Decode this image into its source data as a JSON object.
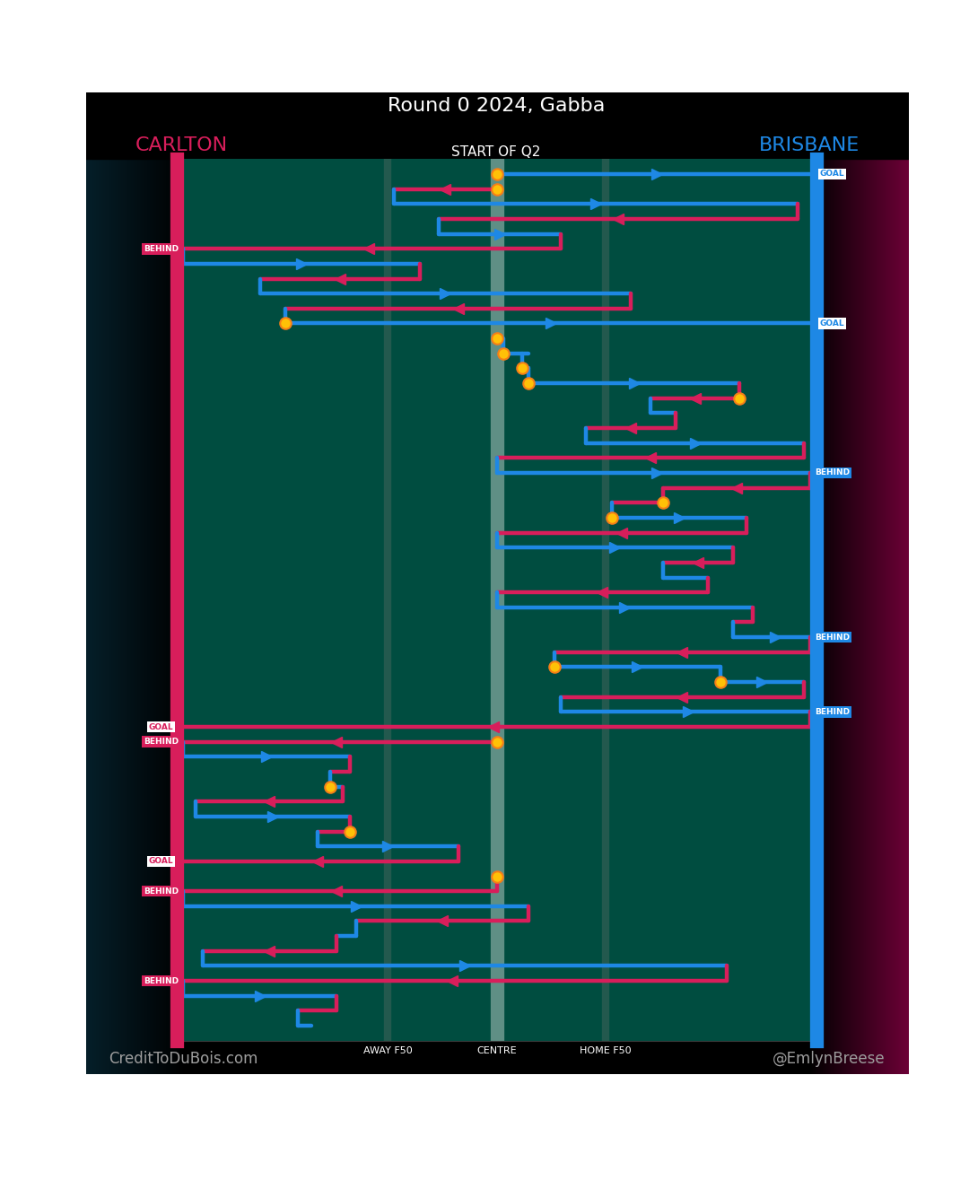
{
  "chart_data": {
    "type": "flow",
    "title": "Round 0 2024, Gabba",
    "subtitle": "START OF Q2",
    "credits": [
      "CreditToDuBois.com",
      "@EmlynBreese"
    ],
    "series": [
      {
        "name": "CARLTON",
        "color": "#d81e5b"
      },
      {
        "name": "BRISBANE",
        "color": "#1e88e5"
      }
    ],
    "results": [
      "GOAL",
      "BEHIND"
    ],
    "xlim": [
      0,
      100
    ],
    "xticks": [
      {
        "value": 33,
        "label": "AWAY F50"
      },
      {
        "value": 50,
        "label": "CENTRE"
      },
      {
        "value": 67,
        "label": "HOME F50"
      }
    ],
    "tick_labels": "x",
    "chains": [
      {
        "team": "BRISBANE",
        "start": 50,
        "end": 100,
        "result": "GOAL",
        "stoppage": true
      },
      {
        "team": "CARLTON",
        "start": 50,
        "end": 34,
        "result": null,
        "stoppage": true
      },
      {
        "team": "BRISBANE",
        "start": 34,
        "end": 97,
        "result": null,
        "stoppage": false
      },
      {
        "team": "CARLTON",
        "start": 97,
        "end": 41,
        "result": null,
        "stoppage": false
      },
      {
        "team": "BRISBANE",
        "start": 41,
        "end": 60,
        "result": null,
        "stoppage": false
      },
      {
        "team": "CARLTON",
        "start": 60,
        "end": 0,
        "result": "BEHIND",
        "stoppage": false
      },
      {
        "team": "BRISBANE",
        "start": 1,
        "end": 38,
        "result": null,
        "stoppage": false
      },
      {
        "team": "CARLTON",
        "start": 38,
        "end": 13,
        "result": null,
        "stoppage": false
      },
      {
        "team": "BRISBANE",
        "start": 13,
        "end": 71,
        "result": null,
        "stoppage": false
      },
      {
        "team": "CARLTON",
        "start": 71,
        "end": 17,
        "result": null,
        "stoppage": false
      },
      {
        "team": "BRISBANE",
        "start": 17,
        "end": 100,
        "result": "GOAL",
        "stoppage": true
      },
      {
        "team": "CARLTON",
        "start": 50,
        "end": 50,
        "result": null,
        "stoppage": true
      },
      {
        "team": "BRISBANE",
        "start": 51,
        "end": 55,
        "result": null,
        "stoppage": true
      },
      {
        "team": "BRISBANE",
        "start": 54,
        "end": 55,
        "result": null,
        "stoppage": true
      },
      {
        "team": "BRISBANE",
        "start": 55,
        "end": 88,
        "result": null,
        "stoppage": true
      },
      {
        "team": "CARLTON",
        "start": 88,
        "end": 74,
        "result": null,
        "stoppage": true
      },
      {
        "team": "BRISBANE",
        "start": 74,
        "end": 78,
        "result": null,
        "stoppage": false
      },
      {
        "team": "CARLTON",
        "start": 78,
        "end": 64,
        "result": null,
        "stoppage": false
      },
      {
        "team": "BRISBANE",
        "start": 64,
        "end": 98,
        "result": null,
        "stoppage": false
      },
      {
        "team": "CARLTON",
        "start": 98,
        "end": 50,
        "result": null,
        "stoppage": false
      },
      {
        "team": "BRISBANE",
        "start": 50,
        "end": 100,
        "result": "BEHIND",
        "stoppage": false
      },
      {
        "team": "CARLTON",
        "start": 99,
        "end": 76,
        "result": null,
        "stoppage": false
      },
      {
        "team": "CARLTON",
        "start": 76,
        "end": 68,
        "result": null,
        "stoppage": true
      },
      {
        "team": "BRISBANE",
        "start": 68,
        "end": 89,
        "result": null,
        "stoppage": true
      },
      {
        "team": "CARLTON",
        "start": 89,
        "end": 50,
        "result": null,
        "stoppage": false
      },
      {
        "team": "BRISBANE",
        "start": 50,
        "end": 87,
        "result": null,
        "stoppage": false
      },
      {
        "team": "CARLTON",
        "start": 87,
        "end": 76,
        "result": null,
        "stoppage": false
      },
      {
        "team": "BRISBANE",
        "start": 76,
        "end": 83,
        "result": null,
        "stoppage": false
      },
      {
        "team": "CARLTON",
        "start": 83,
        "end": 50,
        "result": null,
        "stoppage": false
      },
      {
        "team": "BRISBANE",
        "start": 50,
        "end": 90,
        "result": null,
        "stoppage": false
      },
      {
        "team": "CARLTON",
        "start": 90,
        "end": 87,
        "result": null,
        "stoppage": false
      },
      {
        "team": "BRISBANE",
        "start": 87,
        "end": 100,
        "result": "BEHIND",
        "stoppage": false
      },
      {
        "team": "CARLTON",
        "start": 99,
        "end": 59,
        "result": null,
        "stoppage": false
      },
      {
        "team": "BRISBANE",
        "start": 59,
        "end": 85,
        "result": null,
        "stoppage": true
      },
      {
        "team": "BRISBANE",
        "start": 85,
        "end": 98,
        "result": null,
        "stoppage": true
      },
      {
        "team": "CARLTON",
        "start": 98,
        "end": 60,
        "result": null,
        "stoppage": false
      },
      {
        "team": "BRISBANE",
        "start": 60,
        "end": 100,
        "result": "BEHIND",
        "stoppage": false
      },
      {
        "team": "CARLTON",
        "start": 99,
        "end": 0,
        "result": "GOAL",
        "stoppage": false
      },
      {
        "team": "CARLTON",
        "start": 50,
        "end": 0,
        "result": "BEHIND",
        "stoppage": true
      },
      {
        "team": "BRISBANE",
        "start": 1,
        "end": 27,
        "result": null,
        "stoppage": false
      },
      {
        "team": "CARLTON",
        "start": 27,
        "end": 24,
        "result": null,
        "stoppage": false
      },
      {
        "team": "BRISBANE",
        "start": 24,
        "end": 26,
        "result": null,
        "stoppage": true
      },
      {
        "team": "CARLTON",
        "start": 26,
        "end": 3,
        "result": null,
        "stoppage": false
      },
      {
        "team": "BRISBANE",
        "start": 3,
        "end": 27,
        "result": null,
        "stoppage": false
      },
      {
        "team": "CARLTON",
        "start": 27,
        "end": 22,
        "result": null,
        "stoppage": true
      },
      {
        "team": "BRISBANE",
        "start": 22,
        "end": 44,
        "result": null,
        "stoppage": false
      },
      {
        "team": "CARLTON",
        "start": 44,
        "end": 0,
        "result": "GOAL",
        "stoppage": false
      },
      {
        "team": "BRISBANE",
        "start": 50,
        "end": 50,
        "result": null,
        "stoppage": true
      },
      {
        "team": "CARLTON",
        "start": 50,
        "end": 0,
        "result": "BEHIND",
        "stoppage": false
      },
      {
        "team": "BRISBANE",
        "start": 1,
        "end": 55,
        "result": null,
        "stoppage": false
      },
      {
        "team": "CARLTON",
        "start": 55,
        "end": 28,
        "result": null,
        "stoppage": false
      },
      {
        "team": "BRISBANE",
        "start": 28,
        "end": 25,
        "result": null,
        "stoppage": false
      },
      {
        "team": "CARLTON",
        "start": 25,
        "end": 4,
        "result": null,
        "stoppage": false
      },
      {
        "team": "BRISBANE",
        "start": 4,
        "end": 86,
        "result": null,
        "stoppage": false
      },
      {
        "team": "CARLTON",
        "start": 86,
        "end": 0,
        "result": "BEHIND",
        "stoppage": false
      },
      {
        "team": "BRISBANE",
        "start": 1,
        "end": 25,
        "result": null,
        "stoppage": false
      },
      {
        "team": "CARLTON",
        "start": 25,
        "end": 19,
        "result": null,
        "stoppage": false
      },
      {
        "team": "BRISBANE",
        "start": 19,
        "end": 21,
        "result": null,
        "stoppage": false
      }
    ]
  }
}
